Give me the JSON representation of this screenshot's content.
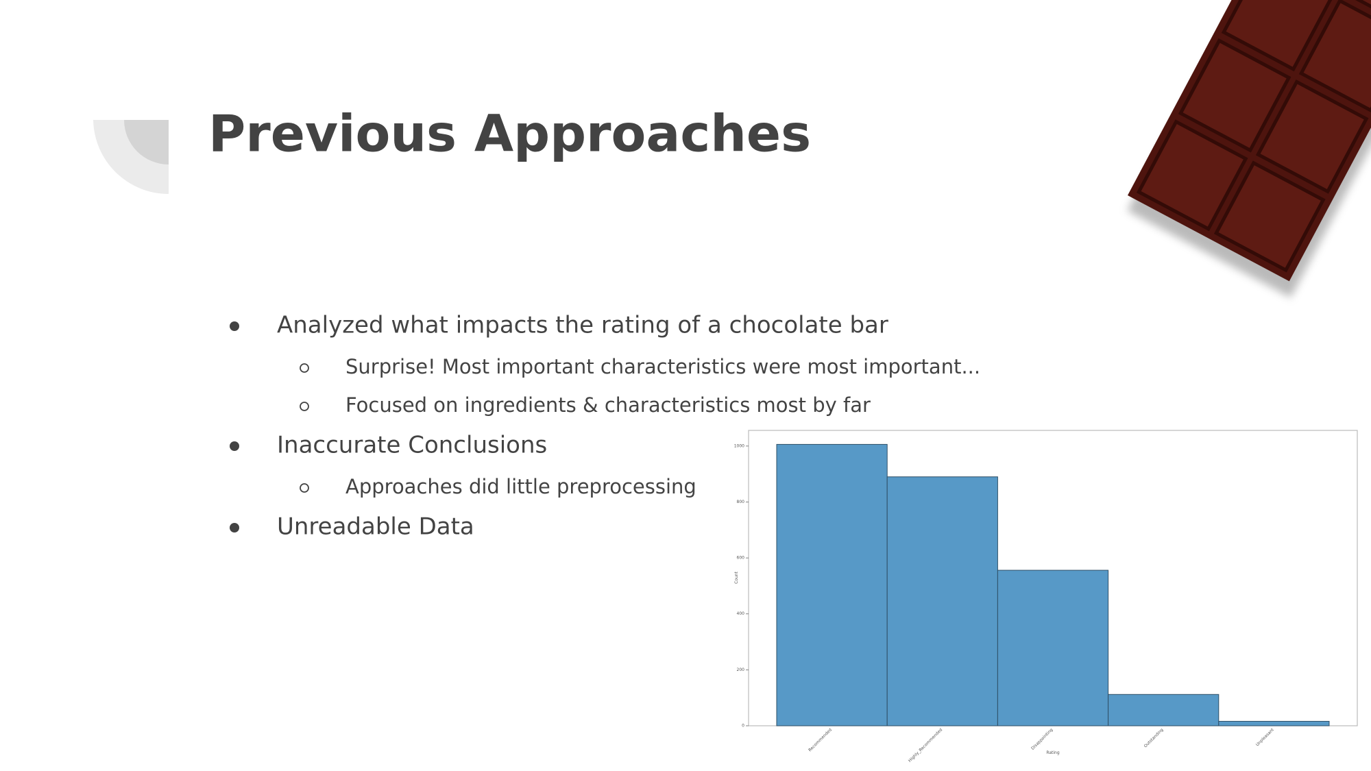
{
  "header": {
    "title": "Previous Approaches"
  },
  "bullets": [
    {
      "text": "Analyzed what impacts the rating of a chocolate bar",
      "sub": [
        "Surprise! Most important characteristics were most important...",
        "Focused on ingredients & characteristics most by far"
      ]
    },
    {
      "text": "Inaccurate Conclusions",
      "sub": [
        "Approaches did little preprocessing"
      ]
    },
    {
      "text": "Unreadable Data",
      "sub": []
    }
  ],
  "chart_data": {
    "type": "bar",
    "x_label": "Rating",
    "y_label": "Count",
    "categories": [
      "Recommended",
      "Highly_Recommended",
      "Disappointing",
      "Outstanding",
      "Unpleasant"
    ],
    "values": [
      1006,
      890,
      556,
      112,
      16
    ],
    "color": "#5799c7",
    "ylim": [
      0,
      1056
    ],
    "yticks": [
      0,
      200,
      400,
      600,
      800,
      1000
    ]
  }
}
